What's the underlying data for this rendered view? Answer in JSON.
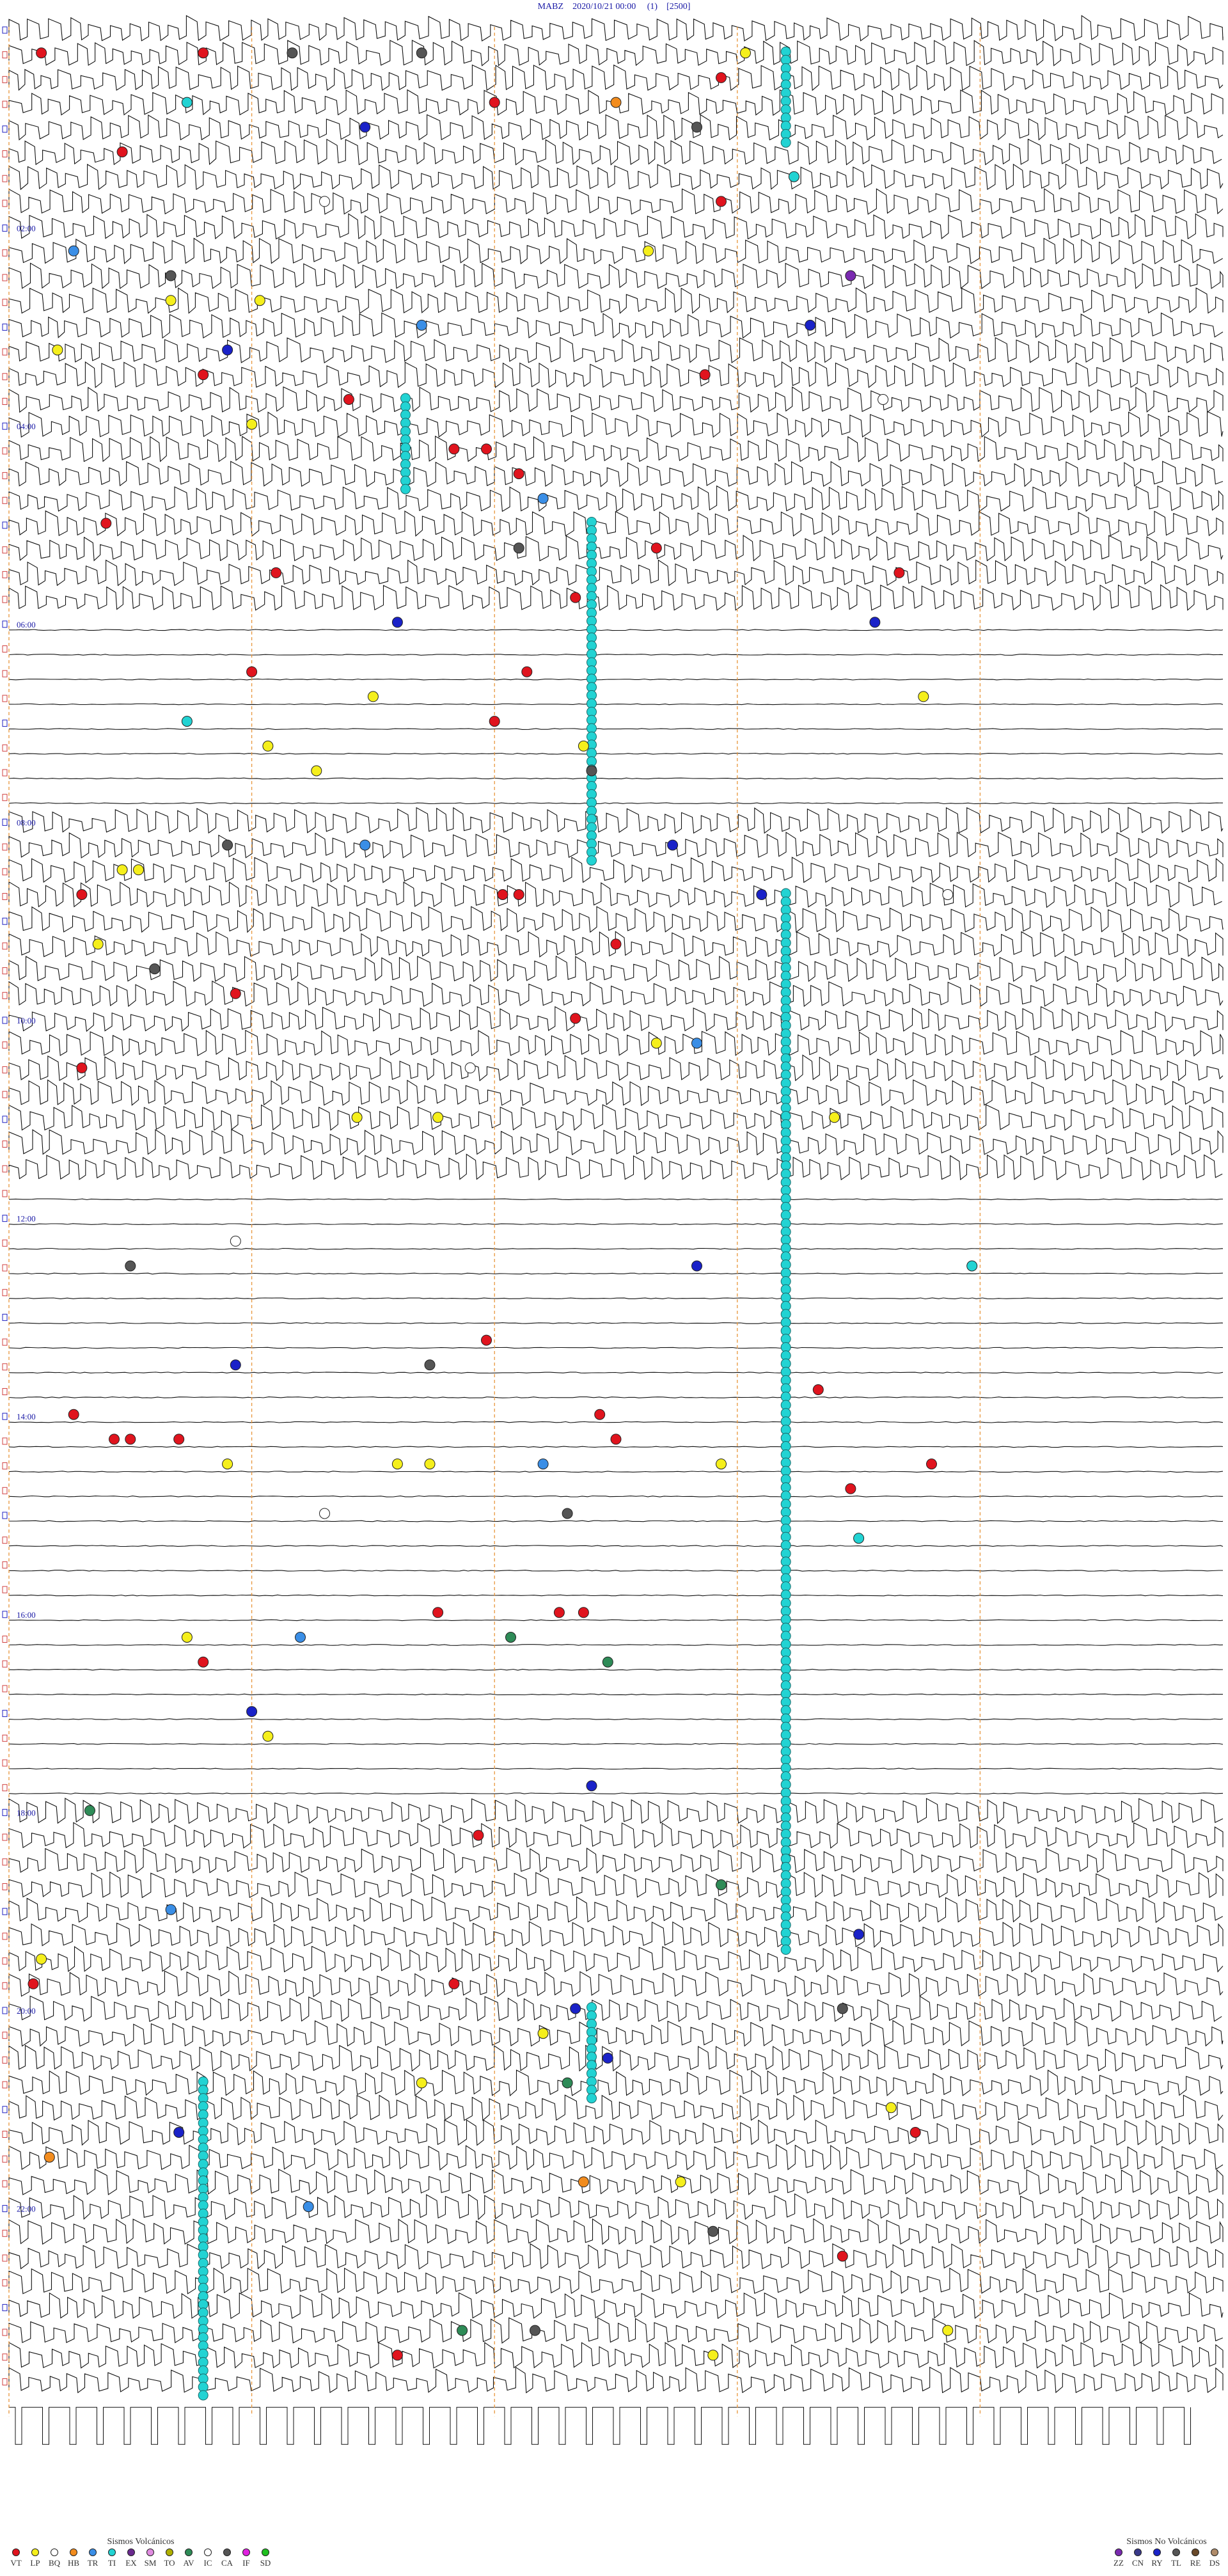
{
  "header": {
    "station": "MABZ",
    "datetime": "2020/10/21 00:00",
    "channel": "(1)",
    "scale": "[2500]"
  },
  "chart_data": {
    "type": "scatter",
    "title": "MABZ    2020/10/21 00:00      (1)    [2500]",
    "x_minutes_per_line": 15,
    "minute_marks": [
      0,
      3,
      6,
      9,
      12
    ],
    "time_labels": [
      {
        "line": 8,
        "label": "02:00"
      },
      {
        "line": 16,
        "label": "04:00"
      },
      {
        "line": 24,
        "label": "06:00"
      },
      {
        "line": 32,
        "label": "08:00"
      },
      {
        "line": 40,
        "label": "10:00"
      },
      {
        "line": 48,
        "label": "12:00"
      },
      {
        "line": 56,
        "label": "14:00"
      },
      {
        "line": 64,
        "label": "16:00"
      },
      {
        "line": 72,
        "label": "18:00"
      },
      {
        "line": 80,
        "label": "20:00"
      },
      {
        "line": 88,
        "label": "22:00"
      }
    ],
    "trace_blocks": [
      {
        "from": 0,
        "to": 24,
        "style": "steps"
      },
      {
        "from": 24,
        "to": 32,
        "style": "flat"
      },
      {
        "from": 32,
        "to": 47,
        "style": "steps"
      },
      {
        "from": 47,
        "to": 72,
        "style": "flat"
      },
      {
        "from": 72,
        "to": 96,
        "style": "steps"
      }
    ],
    "cyan_columns": [
      {
        "minute": 9.6,
        "from_line": 1,
        "to_line": 5
      },
      {
        "minute": 4.9,
        "from_line": 15,
        "to_line": 19
      },
      {
        "minute": 7.2,
        "from_line": 20,
        "to_line": 34
      },
      {
        "minute": 9.6,
        "from_line": 35,
        "to_line": 47
      },
      {
        "minute": 9.6,
        "from_line": 47,
        "to_line": 78
      },
      {
        "minute": 7.2,
        "from_line": 80,
        "to_line": 84
      },
      {
        "minute": 2.4,
        "from_line": 83,
        "to_line": 96
      }
    ],
    "events": [
      {
        "line": 1,
        "minute": 0.4,
        "type": "VT"
      },
      {
        "line": 1,
        "minute": 2.4,
        "type": "VT"
      },
      {
        "line": 1,
        "minute": 3.5,
        "type": "CA"
      },
      {
        "line": 1,
        "minute": 5.1,
        "type": "CA"
      },
      {
        "line": 1,
        "minute": 9.1,
        "type": "LP"
      },
      {
        "line": 2,
        "minute": 8.8,
        "type": "VT"
      },
      {
        "line": 3,
        "minute": 2.2,
        "type": "TI"
      },
      {
        "line": 3,
        "minute": 6.0,
        "type": "VT"
      },
      {
        "line": 3,
        "minute": 7.5,
        "type": "HB"
      },
      {
        "line": 4,
        "minute": 4.4,
        "type": "RY"
      },
      {
        "line": 4,
        "minute": 8.5,
        "type": "CA"
      },
      {
        "line": 5,
        "minute": 1.4,
        "type": "VT"
      },
      {
        "line": 6,
        "minute": 9.7,
        "type": "TI"
      },
      {
        "line": 7,
        "minute": 3.9,
        "type": "IC"
      },
      {
        "line": 7,
        "minute": 8.8,
        "type": "VT"
      },
      {
        "line": 9,
        "minute": 0.8,
        "type": "TR"
      },
      {
        "line": 9,
        "minute": 7.9,
        "type": "LP"
      },
      {
        "line": 10,
        "minute": 2.0,
        "type": "CA"
      },
      {
        "line": 10,
        "minute": 10.4,
        "type": "ZZ"
      },
      {
        "line": 11,
        "minute": 2.0,
        "type": "LP"
      },
      {
        "line": 11,
        "minute": 3.1,
        "type": "LP"
      },
      {
        "line": 12,
        "minute": 5.1,
        "type": "TR"
      },
      {
        "line": 12,
        "minute": 9.9,
        "type": "RY"
      },
      {
        "line": 13,
        "minute": 0.6,
        "type": "LP"
      },
      {
        "line": 13,
        "minute": 2.7,
        "type": "RY"
      },
      {
        "line": 14,
        "minute": 2.4,
        "type": "VT"
      },
      {
        "line": 14,
        "minute": 8.6,
        "type": "VT"
      },
      {
        "line": 15,
        "minute": 4.2,
        "type": "VT"
      },
      {
        "line": 15,
        "minute": 10.8,
        "type": "IC"
      },
      {
        "line": 16,
        "minute": 3.0,
        "type": "LP"
      },
      {
        "line": 17,
        "minute": 5.5,
        "type": "VT"
      },
      {
        "line": 17,
        "minute": 5.9,
        "type": "VT"
      },
      {
        "line": 18,
        "minute": 6.3,
        "type": "VT"
      },
      {
        "line": 19,
        "minute": 6.6,
        "type": "TR"
      },
      {
        "line": 20,
        "minute": 1.2,
        "type": "VT"
      },
      {
        "line": 21,
        "minute": 8.0,
        "type": "VT"
      },
      {
        "line": 21,
        "minute": 6.3,
        "type": "CA"
      },
      {
        "line": 22,
        "minute": 3.3,
        "type": "VT"
      },
      {
        "line": 22,
        "minute": 11.0,
        "type": "VT"
      },
      {
        "line": 23,
        "minute": 7.0,
        "type": "VT"
      },
      {
        "line": 24,
        "minute": 4.8,
        "type": "RY"
      },
      {
        "line": 24,
        "minute": 10.7,
        "type": "RY"
      },
      {
        "line": 26,
        "minute": 3.0,
        "type": "VT"
      },
      {
        "line": 26,
        "minute": 6.4,
        "type": "VT"
      },
      {
        "line": 27,
        "minute": 4.5,
        "type": "LP"
      },
      {
        "line": 27,
        "minute": 11.3,
        "type": "LP"
      },
      {
        "line": 28,
        "minute": 2.2,
        "type": "TI"
      },
      {
        "line": 28,
        "minute": 6.0,
        "type": "VT"
      },
      {
        "line": 29,
        "minute": 3.2,
        "type": "LP"
      },
      {
        "line": 29,
        "minute": 7.1,
        "type": "LP"
      },
      {
        "line": 30,
        "minute": 3.8,
        "type": "LP"
      },
      {
        "line": 30,
        "minute": 7.2,
        "type": "CA"
      },
      {
        "line": 33,
        "minute": 2.7,
        "type": "CA"
      },
      {
        "line": 33,
        "minute": 4.4,
        "type": "TR"
      },
      {
        "line": 33,
        "minute": 8.2,
        "type": "RY"
      },
      {
        "line": 34,
        "minute": 1.4,
        "type": "LP"
      },
      {
        "line": 34,
        "minute": 1.6,
        "type": "LP"
      },
      {
        "line": 35,
        "minute": 0.9,
        "type": "VT"
      },
      {
        "line": 35,
        "minute": 6.1,
        "type": "VT"
      },
      {
        "line": 35,
        "minute": 6.3,
        "type": "VT"
      },
      {
        "line": 35,
        "minute": 9.3,
        "type": "RY"
      },
      {
        "line": 35,
        "minute": 11.6,
        "type": "IC"
      },
      {
        "line": 37,
        "minute": 1.1,
        "type": "LP"
      },
      {
        "line": 37,
        "minute": 7.5,
        "type": "VT"
      },
      {
        "line": 38,
        "minute": 1.8,
        "type": "CA"
      },
      {
        "line": 39,
        "minute": 2.8,
        "type": "VT"
      },
      {
        "line": 40,
        "minute": 7.0,
        "type": "VT"
      },
      {
        "line": 41,
        "minute": 8.0,
        "type": "LP"
      },
      {
        "line": 41,
        "minute": 8.5,
        "type": "TR"
      },
      {
        "line": 42,
        "minute": 0.9,
        "type": "VT"
      },
      {
        "line": 42,
        "minute": 5.7,
        "type": "IC"
      },
      {
        "line": 44,
        "minute": 4.3,
        "type": "LP"
      },
      {
        "line": 44,
        "minute": 5.3,
        "type": "LP"
      },
      {
        "line": 44,
        "minute": 10.2,
        "type": "LP"
      },
      {
        "line": 49,
        "minute": 2.8,
        "type": "IC"
      },
      {
        "line": 50,
        "minute": 1.5,
        "type": "CA"
      },
      {
        "line": 50,
        "minute": 8.5,
        "type": "RY"
      },
      {
        "line": 50,
        "minute": 11.9,
        "type": "TI"
      },
      {
        "line": 53,
        "minute": 5.9,
        "type": "VT"
      },
      {
        "line": 54,
        "minute": 2.8,
        "type": "RY"
      },
      {
        "line": 54,
        "minute": 5.2,
        "type": "CA"
      },
      {
        "line": 55,
        "minute": 10.0,
        "type": "VT"
      },
      {
        "line": 56,
        "minute": 0.8,
        "type": "VT"
      },
      {
        "line": 56,
        "minute": 7.3,
        "type": "VT"
      },
      {
        "line": 57,
        "minute": 1.3,
        "type": "VT"
      },
      {
        "line": 57,
        "minute": 1.5,
        "type": "VT"
      },
      {
        "line": 57,
        "minute": 2.1,
        "type": "VT"
      },
      {
        "line": 57,
        "minute": 7.5,
        "type": "VT"
      },
      {
        "line": 58,
        "minute": 2.7,
        "type": "LP"
      },
      {
        "line": 58,
        "minute": 4.8,
        "type": "LP"
      },
      {
        "line": 58,
        "minute": 5.2,
        "type": "LP"
      },
      {
        "line": 58,
        "minute": 6.6,
        "type": "TR"
      },
      {
        "line": 58,
        "minute": 8.8,
        "type": "LP"
      },
      {
        "line": 58,
        "minute": 11.4,
        "type": "VT"
      },
      {
        "line": 59,
        "minute": 10.4,
        "type": "VT"
      },
      {
        "line": 60,
        "minute": 3.9,
        "type": "IC"
      },
      {
        "line": 60,
        "minute": 6.9,
        "type": "CA"
      },
      {
        "line": 61,
        "minute": 10.5,
        "type": "TI"
      },
      {
        "line": 64,
        "minute": 5.3,
        "type": "VT"
      },
      {
        "line": 64,
        "minute": 6.8,
        "type": "VT"
      },
      {
        "line": 64,
        "minute": 7.1,
        "type": "VT"
      },
      {
        "line": 65,
        "minute": 2.2,
        "type": "LP"
      },
      {
        "line": 65,
        "minute": 3.6,
        "type": "TR"
      },
      {
        "line": 65,
        "minute": 6.2,
        "type": "AV"
      },
      {
        "line": 66,
        "minute": 2.4,
        "type": "VT"
      },
      {
        "line": 66,
        "minute": 7.4,
        "type": "AV"
      },
      {
        "line": 68,
        "minute": 3.0,
        "type": "RY"
      },
      {
        "line": 69,
        "minute": 3.2,
        "type": "LP"
      },
      {
        "line": 71,
        "minute": 7.2,
        "type": "RY"
      },
      {
        "line": 72,
        "minute": 1.0,
        "type": "AV"
      },
      {
        "line": 73,
        "minute": 5.8,
        "type": "VT"
      },
      {
        "line": 75,
        "minute": 8.8,
        "type": "AV"
      },
      {
        "line": 76,
        "minute": 2.0,
        "type": "TR"
      },
      {
        "line": 77,
        "minute": 10.5,
        "type": "RY"
      },
      {
        "line": 78,
        "minute": 0.4,
        "type": "LP"
      },
      {
        "line": 79,
        "minute": 0.3,
        "type": "VT"
      },
      {
        "line": 79,
        "minute": 5.5,
        "type": "VT"
      },
      {
        "line": 80,
        "minute": 7.0,
        "type": "RY"
      },
      {
        "line": 80,
        "minute": 10.3,
        "type": "CA"
      },
      {
        "line": 81,
        "minute": 6.6,
        "type": "LP"
      },
      {
        "line": 82,
        "minute": 7.4,
        "type": "RY"
      },
      {
        "line": 83,
        "minute": 5.1,
        "type": "LP"
      },
      {
        "line": 83,
        "minute": 6.9,
        "type": "AV"
      },
      {
        "line": 84,
        "minute": 10.9,
        "type": "LP"
      },
      {
        "line": 85,
        "minute": 2.1,
        "type": "RY"
      },
      {
        "line": 85,
        "minute": 11.2,
        "type": "VT"
      },
      {
        "line": 86,
        "minute": 0.5,
        "type": "HB"
      },
      {
        "line": 87,
        "minute": 7.1,
        "type": "HB"
      },
      {
        "line": 87,
        "minute": 8.3,
        "type": "LP"
      },
      {
        "line": 88,
        "minute": 3.7,
        "type": "TR"
      },
      {
        "line": 89,
        "minute": 8.7,
        "type": "CA"
      },
      {
        "line": 90,
        "minute": 10.3,
        "type": "VT"
      },
      {
        "line": 93,
        "minute": 5.6,
        "type": "AV"
      },
      {
        "line": 93,
        "minute": 6.5,
        "type": "CA"
      },
      {
        "line": 93,
        "minute": 11.6,
        "type": "LP"
      },
      {
        "line": 94,
        "minute": 4.8,
        "type": "VT"
      },
      {
        "line": 94,
        "minute": 8.7,
        "type": "LP"
      }
    ]
  },
  "legend_volcanic": {
    "title": "Sismos Volcánicos",
    "items": [
      {
        "code": "VT",
        "color": "#e0141e"
      },
      {
        "code": "LP",
        "color": "#f5ef1c"
      },
      {
        "code": "BQ",
        "color": "#ffffff"
      },
      {
        "code": "HB",
        "color": "#f28c1e"
      },
      {
        "code": "TR",
        "color": "#3a8ee6"
      },
      {
        "code": "TI",
        "color": "#22d3d3"
      },
      {
        "code": "EX",
        "color": "#6a2a8f"
      },
      {
        "code": "SM",
        "color": "#e08ce0"
      },
      {
        "code": "TO",
        "color": "#b0b000"
      },
      {
        "code": "AV",
        "color": "#2e8b57"
      },
      {
        "code": "IC",
        "color": "#ffffff"
      },
      {
        "code": "CA",
        "color": "#555555"
      },
      {
        "code": "IF",
        "color": "#e020e0"
      },
      {
        "code": "SD",
        "color": "#20c020"
      }
    ]
  },
  "legend_nonvolcanic": {
    "title": "Sismos No Volcánicos",
    "items": [
      {
        "code": "ZZ",
        "color": "#7a2ab0"
      },
      {
        "code": "CN",
        "color": "#3a3a8a"
      },
      {
        "code": "RY",
        "color": "#1a22c8"
      },
      {
        "code": "TL",
        "color": "#555555"
      },
      {
        "code": "RE",
        "color": "#6a4a2a"
      },
      {
        "code": "DS",
        "color": "#b08c6a"
      }
    ]
  },
  "colors": {
    "trace": "#111111",
    "minute_mark": "#e8963c",
    "time_label": "#1a1aa6",
    "tick_blue": "#2020c0",
    "tick_red": "#d04040"
  }
}
